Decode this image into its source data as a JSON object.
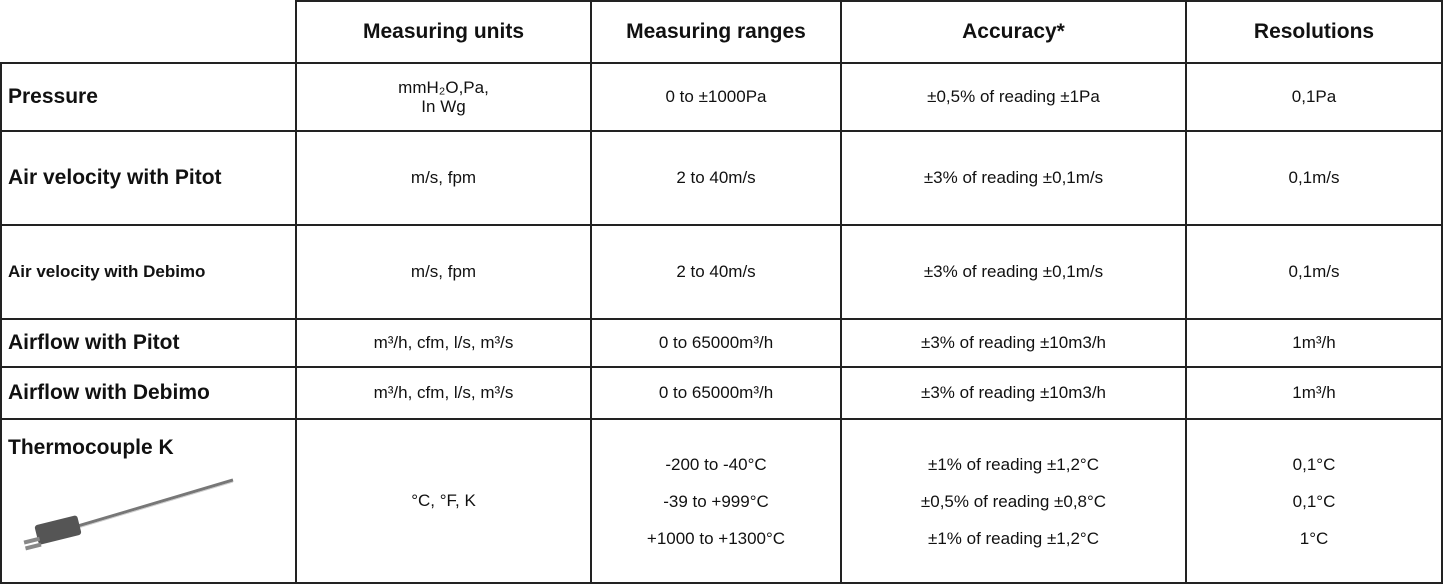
{
  "table": {
    "header": [
      "Measuring units",
      "Measuring ranges",
      "Accuracy*",
      "Resolutions"
    ],
    "rows": [
      {
        "label": "Pressure",
        "units": [
          "mmH₂O,Pa,",
          "In Wg"
        ],
        "ranges": [
          "0 to ±1000Pa"
        ],
        "accuracy": [
          "±0,5% of reading ±1Pa"
        ],
        "resolutions": [
          "0,1Pa"
        ]
      },
      {
        "label": "Air velocity with Pitot",
        "units": [
          "m/s, fpm"
        ],
        "ranges": [
          "2 to 40m/s"
        ],
        "accuracy": [
          "±3% of reading ±0,1m/s"
        ],
        "resolutions": [
          "0,1m/s"
        ]
      },
      {
        "label": "Air velocity with Debimo",
        "units": [
          "m/s, fpm"
        ],
        "ranges": [
          "2 to 40m/s"
        ],
        "accuracy": [
          "±3% of reading ±0,1m/s"
        ],
        "resolutions": [
          "0,1m/s"
        ]
      },
      {
        "label": "Airflow with Pitot",
        "units": [
          "m³/h, cfm, l/s, m³/s"
        ],
        "ranges": [
          "0 to 65000m³/h"
        ],
        "accuracy": [
          "±3% of reading ±10m3/h"
        ],
        "resolutions": [
          "1m³/h"
        ]
      },
      {
        "label": "Airflow with Debimo",
        "units": [
          "m³/h, cfm, l/s, m³/s"
        ],
        "ranges": [
          "0 to 65000m³/h"
        ],
        "accuracy": [
          "±3% of reading ±10m3/h"
        ],
        "resolutions": [
          "1m³/h"
        ]
      },
      {
        "label": "Thermocouple K",
        "units": [
          "°C, °F, K"
        ],
        "ranges": [
          "-200 to -40°C",
          "-39 to +999°C",
          "+1000 to +1300°C"
        ],
        "accuracy": [
          "±1% of reading ±1,2°C",
          "±0,5% of reading ±0,8°C",
          "±1% of reading ±1,2°C"
        ],
        "resolutions": [
          "0,1°C",
          "0,1°C",
          "1°C"
        ]
      }
    ]
  }
}
